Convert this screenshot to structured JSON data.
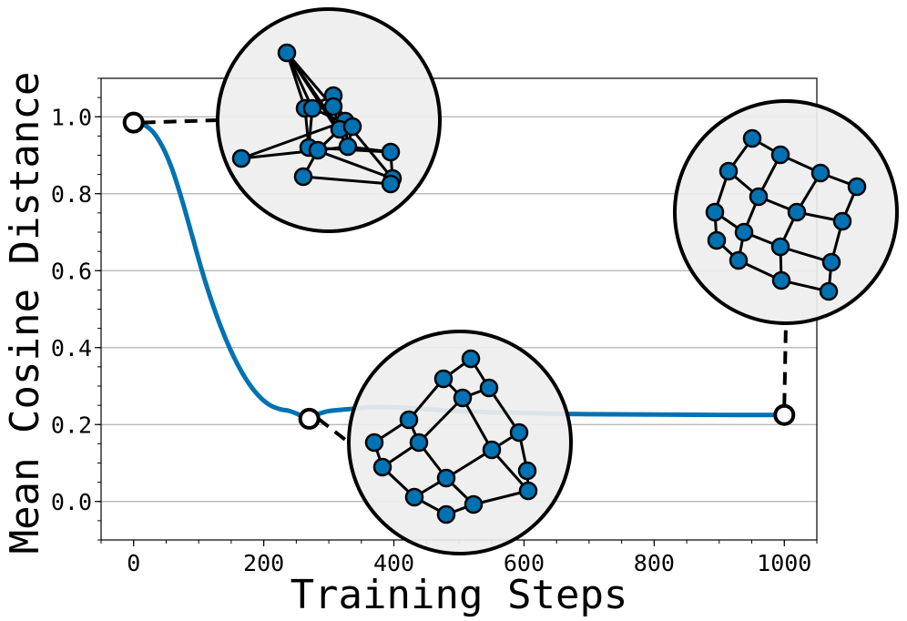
{
  "chart_data": {
    "type": "line",
    "title": "",
    "xlabel": "Training Steps",
    "ylabel": "Mean Cosine Distance",
    "xlim": [
      -50,
      1050
    ],
    "ylim": [
      -0.1,
      1.1
    ],
    "xticks": [
      0,
      200,
      400,
      600,
      800,
      1000
    ],
    "yticks": [
      0.0,
      0.2,
      0.4,
      0.6,
      0.8,
      1.0
    ],
    "xtick_labels": [
      "0",
      "200",
      "400",
      "600",
      "800",
      "1000"
    ],
    "ytick_labels": [
      "0.0",
      "0.2",
      "0.4",
      "0.6",
      "0.8",
      "1.0"
    ],
    "grid": "horizontal",
    "series": [
      {
        "color": "#0072b2",
        "x": [
          0,
          15,
          30,
          45,
          60,
          75,
          90,
          105,
          120,
          135,
          150,
          165,
          180,
          195,
          210,
          225,
          240,
          255,
          265,
          280,
          300,
          330,
          360,
          400,
          450,
          500,
          550,
          600,
          650,
          700,
          800,
          900,
          1000
        ],
        "y": [
          0.985,
          0.98,
          0.96,
          0.92,
          0.86,
          0.78,
          0.69,
          0.6,
          0.52,
          0.45,
          0.39,
          0.34,
          0.3,
          0.27,
          0.25,
          0.24,
          0.235,
          0.225,
          0.215,
          0.225,
          0.235,
          0.24,
          0.245,
          0.245,
          0.24,
          0.235,
          0.232,
          0.23,
          0.228,
          0.227,
          0.226,
          0.225,
          0.225
        ]
      }
    ],
    "markers": [
      {
        "x": 0,
        "y": 0.985
      },
      {
        "x": 270,
        "y": 0.215
      },
      {
        "x": 1000,
        "y": 0.225
      }
    ]
  },
  "colors": {
    "line": "#0072b2",
    "node_fill": "#0072b2",
    "inset_fill": "#eeeeee",
    "grid": "#b0b0b0"
  }
}
